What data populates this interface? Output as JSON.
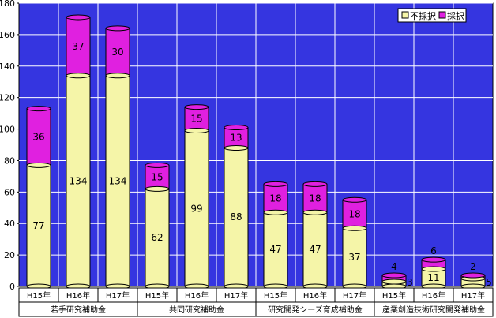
{
  "chart_data": {
    "type": "bar",
    "stacked": true,
    "ylim": [
      0,
      180
    ],
    "yticks": [
      0,
      20,
      40,
      60,
      80,
      100,
      120,
      140,
      160,
      180
    ],
    "grid": true,
    "legend_position": "top-right",
    "groups": [
      {
        "name": "若手研究補助金",
        "categories": [
          "H15年",
          "H16年",
          "H17年"
        ]
      },
      {
        "name": "共同研究補助金",
        "categories": [
          "H15年",
          "H16年",
          "H17年"
        ]
      },
      {
        "name": "研究開発シーズ育成補助金",
        "categories": [
          "H15年",
          "H16年",
          "H17年"
        ]
      },
      {
        "name": "産業創造技術研究開発補助金",
        "categories": [
          "H15年",
          "H16年",
          "H17年"
        ]
      }
    ],
    "series": [
      {
        "name": "不採択",
        "color": "#f5f5a8",
        "values": [
          77,
          134,
          134,
          62,
          99,
          88,
          47,
          47,
          37,
          3,
          11,
          5
        ]
      },
      {
        "name": "採択",
        "color": "#e020e0",
        "values": [
          36,
          37,
          30,
          15,
          15,
          13,
          18,
          18,
          18,
          4,
          6,
          2
        ]
      }
    ],
    "colors": {
      "background": "#3535e0",
      "grid": "#ffffff"
    }
  }
}
